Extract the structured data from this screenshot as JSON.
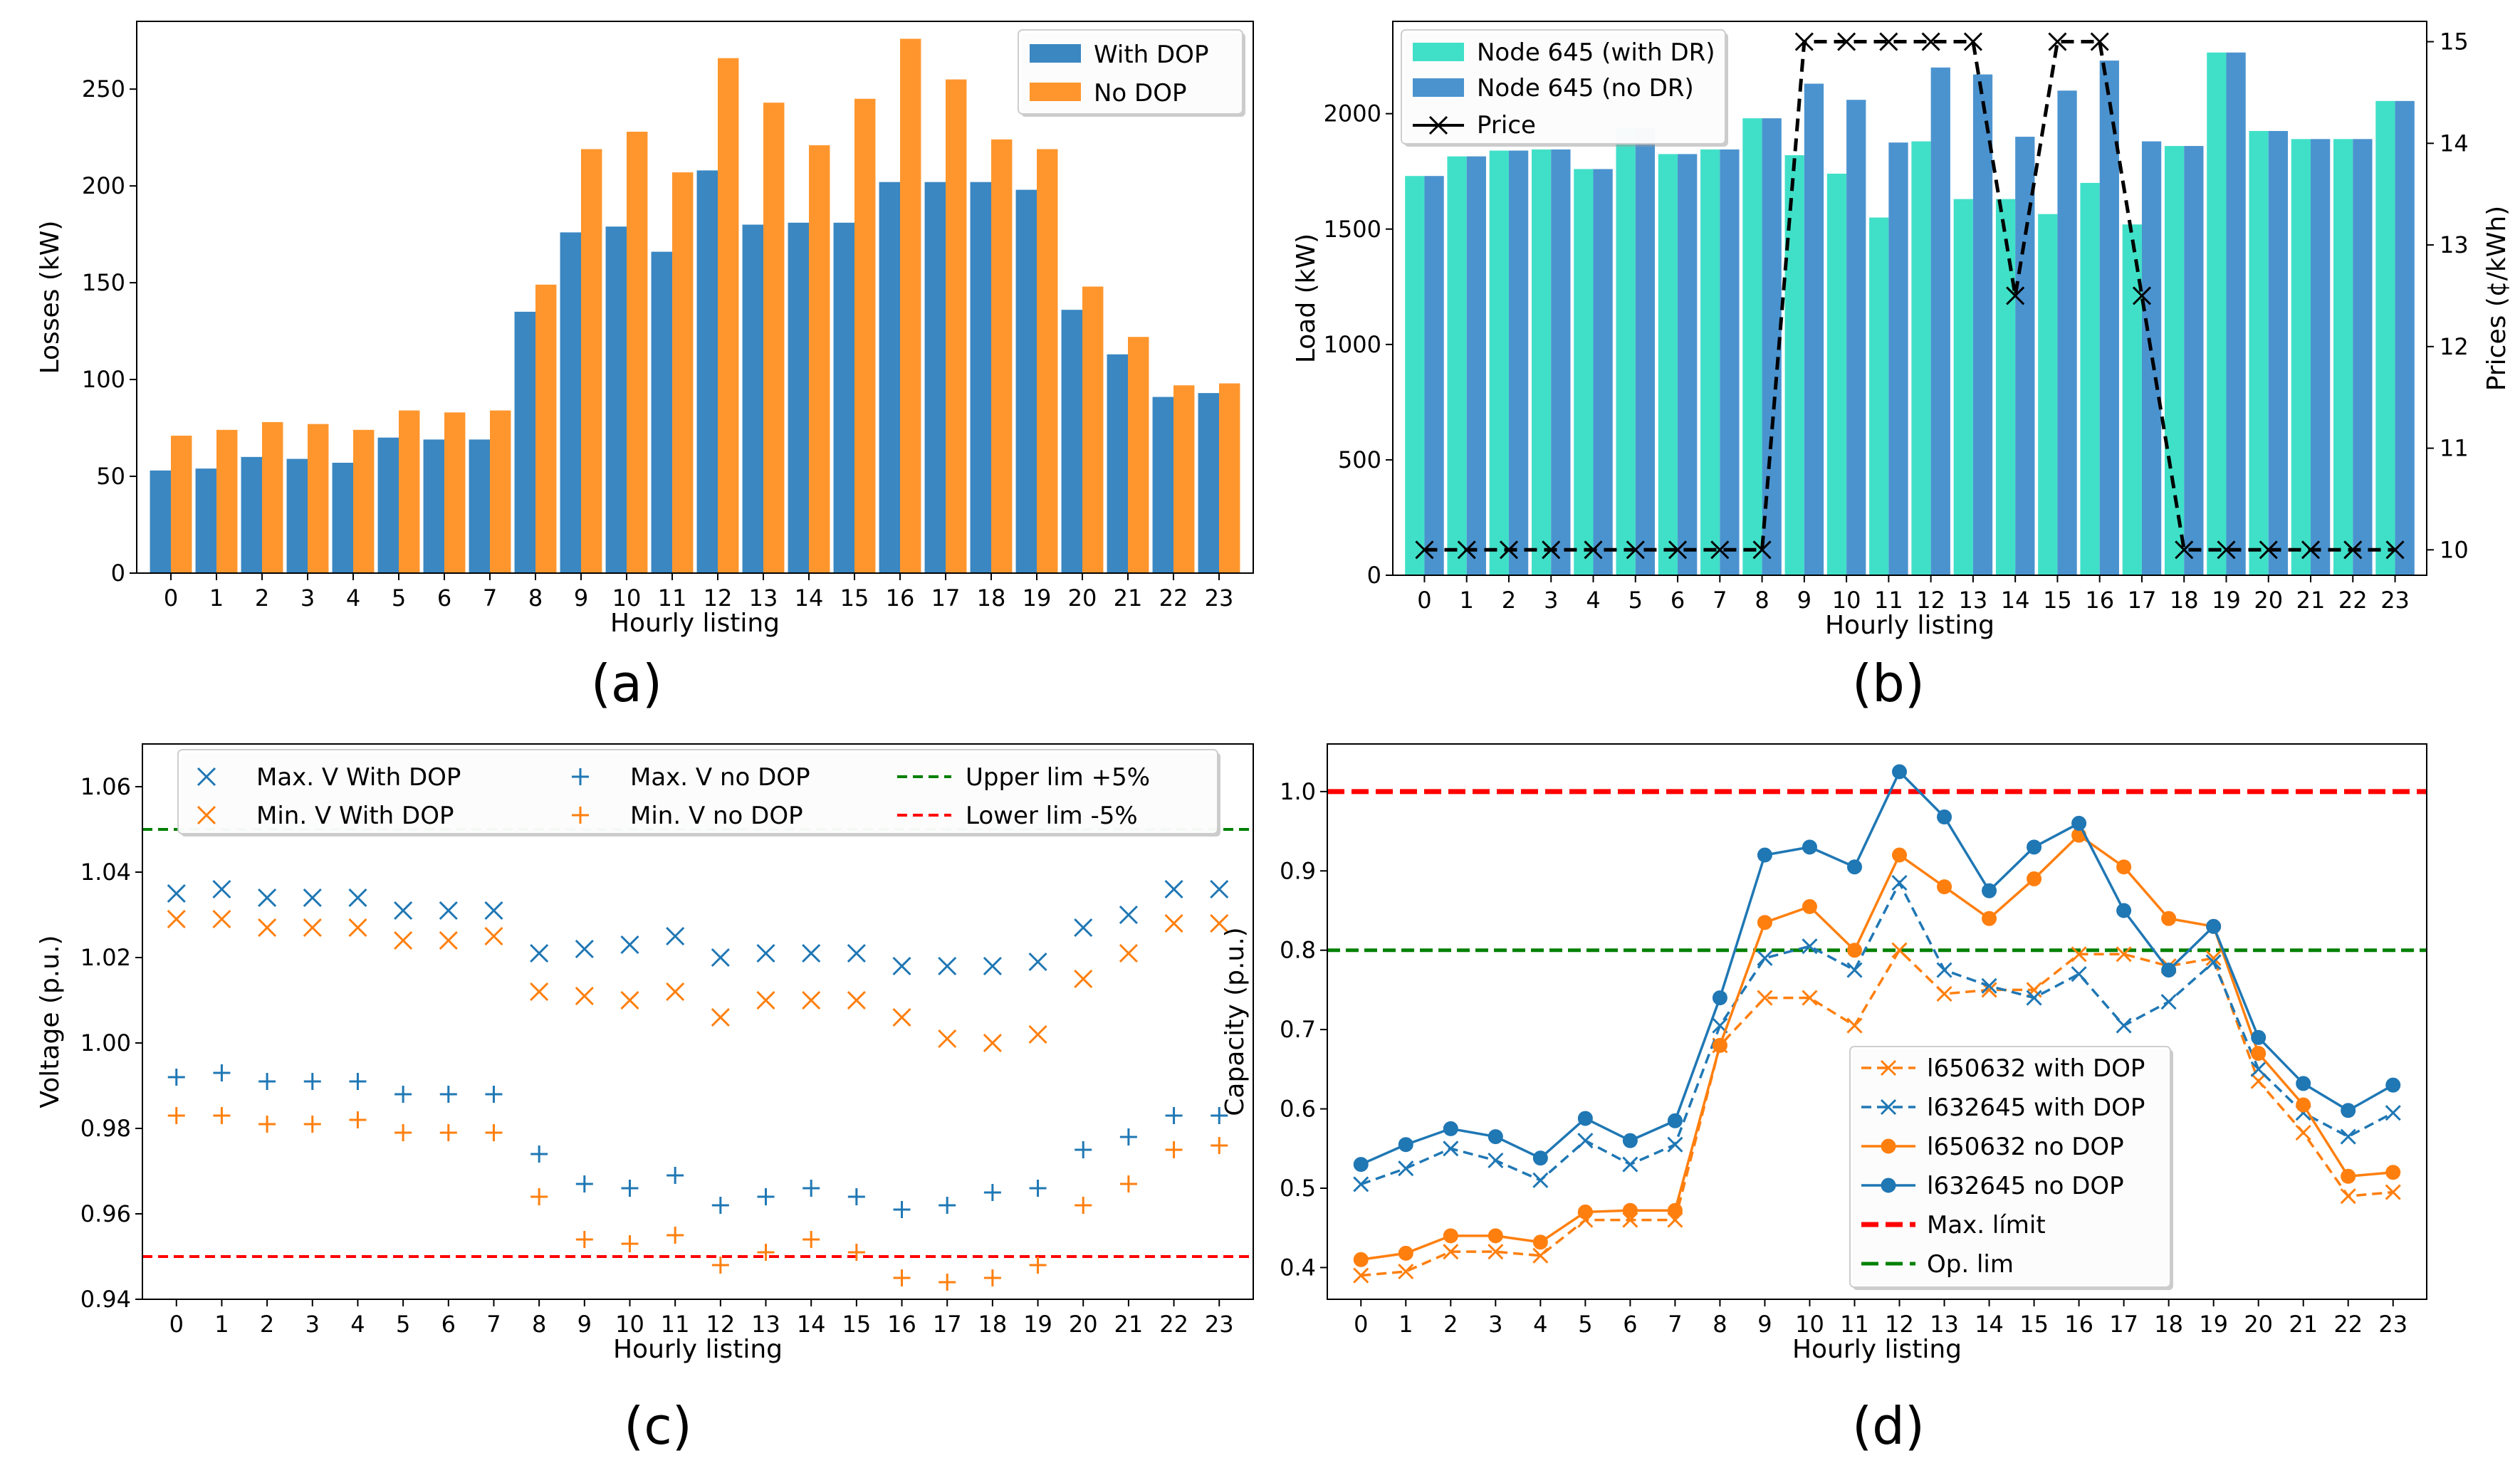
{
  "chart_data": [
    {
      "type": "bar",
      "panel_label": "(a)",
      "title": "",
      "xlabel": "Hourly listing",
      "ylabel": "Losses (kW)",
      "ylim": [
        0,
        285
      ],
      "yticks": [
        0,
        50,
        100,
        150,
        200,
        250
      ],
      "categories": [
        "0",
        "1",
        "2",
        "3",
        "4",
        "5",
        "6",
        "7",
        "8",
        "9",
        "10",
        "11",
        "12",
        "13",
        "14",
        "15",
        "16",
        "17",
        "18",
        "19",
        "20",
        "21",
        "22",
        "23"
      ],
      "legend_position": "top-right",
      "series": [
        {
          "name": "With DOP",
          "color": "#3a87c2",
          "values": [
            53,
            54,
            60,
            59,
            57,
            70,
            69,
            69,
            135,
            176,
            179,
            166,
            208,
            180,
            181,
            181,
            202,
            202,
            202,
            198,
            136,
            113,
            91,
            93
          ]
        },
        {
          "name": "No DOP",
          "color": "#ff962d",
          "values": [
            71,
            74,
            78,
            77,
            74,
            84,
            83,
            84,
            149,
            219,
            228,
            207,
            266,
            243,
            221,
            245,
            276,
            255,
            224,
            219,
            148,
            122,
            97,
            98
          ]
        }
      ]
    },
    {
      "type": "bar",
      "panel_label": "(b)",
      "title": "",
      "xlabel": "Hourly listing",
      "ylabel": "Load (kW)",
      "ylabel_right": "Prices (¢/kWh)",
      "ylim": [
        0,
        2400
      ],
      "yticks": [
        0,
        500,
        1000,
        1500,
        2000
      ],
      "ylim_right": [
        9.75,
        15.2
      ],
      "yticks_right": [
        10,
        11,
        12,
        13,
        14,
        15
      ],
      "categories": [
        "0",
        "1",
        "2",
        "3",
        "4",
        "5",
        "6",
        "7",
        "8",
        "9",
        "10",
        "11",
        "12",
        "13",
        "14",
        "15",
        "16",
        "17",
        "18",
        "19",
        "20",
        "21",
        "22",
        "23"
      ],
      "legend_position": "top-left",
      "series": [
        {
          "name": "Node 645 (with DR)",
          "color": "#40e0c8",
          "values": [
            1730,
            1815,
            1840,
            1845,
            1760,
            1940,
            1825,
            1845,
            1980,
            1820,
            1740,
            1550,
            1880,
            1630,
            1630,
            1565,
            1700,
            1520,
            1860,
            2265,
            1925,
            1890,
            1890,
            2055
          ]
        },
        {
          "name": "Node 645 (no DR)",
          "color": "#4b93cf",
          "values": [
            1730,
            1815,
            1840,
            1845,
            1760,
            1940,
            1825,
            1845,
            1980,
            2130,
            2060,
            1875,
            2200,
            2170,
            1900,
            2100,
            2230,
            1880,
            1860,
            2265,
            1925,
            1890,
            1890,
            2055
          ]
        },
        {
          "name": "Price",
          "color": "#000000",
          "axis": "right",
          "values": [
            10,
            10,
            10,
            10,
            10,
            10,
            10,
            10,
            10,
            15,
            15,
            15,
            15,
            15,
            12.5,
            15,
            15,
            12.5,
            10,
            10,
            10,
            10,
            10,
            10
          ]
        }
      ]
    },
    {
      "type": "scatter",
      "panel_label": "(c)",
      "title": "",
      "xlabel": "Hourly listing",
      "ylabel": "Voltage (p.u.)",
      "ylim": [
        0.94,
        1.07
      ],
      "yticks": [
        0.94,
        0.96,
        0.98,
        1.0,
        1.02,
        1.04,
        1.06
      ],
      "categories": [
        "0",
        "1",
        "2",
        "3",
        "4",
        "5",
        "6",
        "7",
        "8",
        "9",
        "10",
        "11",
        "12",
        "13",
        "14",
        "15",
        "16",
        "17",
        "18",
        "19",
        "20",
        "21",
        "22",
        "23"
      ],
      "legend_position": "top-center",
      "series": [
        {
          "name": "Max. V With DOP",
          "color": "#1f77b4",
          "marker": "x",
          "values": [
            1.035,
            1.036,
            1.034,
            1.034,
            1.034,
            1.031,
            1.031,
            1.031,
            1.021,
            1.022,
            1.023,
            1.025,
            1.02,
            1.021,
            1.021,
            1.021,
            1.018,
            1.018,
            1.018,
            1.019,
            1.027,
            1.03,
            1.036,
            1.036
          ]
        },
        {
          "name": "Min. V With DOP",
          "color": "#ff7f0e",
          "marker": "x",
          "values": [
            1.029,
            1.029,
            1.027,
            1.027,
            1.027,
            1.024,
            1.024,
            1.025,
            1.012,
            1.011,
            1.01,
            1.012,
            1.006,
            1.01,
            1.01,
            1.01,
            1.006,
            1.001,
            1.0,
            1.002,
            1.015,
            1.021,
            1.028,
            1.028
          ]
        },
        {
          "name": "Max. V no DOP",
          "color": "#1f77b4",
          "marker": "+",
          "values": [
            0.992,
            0.993,
            0.991,
            0.991,
            0.991,
            0.988,
            0.988,
            0.988,
            0.974,
            0.967,
            0.966,
            0.969,
            0.962,
            0.964,
            0.966,
            0.964,
            0.961,
            0.962,
            0.965,
            0.966,
            0.975,
            0.978,
            0.983,
            0.983
          ]
        },
        {
          "name": "Min. V no DOP",
          "color": "#ff7f0e",
          "marker": "+",
          "values": [
            0.983,
            0.983,
            0.981,
            0.981,
            0.982,
            0.979,
            0.979,
            0.979,
            0.964,
            0.954,
            0.953,
            0.955,
            0.948,
            0.951,
            0.954,
            0.951,
            0.945,
            0.944,
            0.945,
            0.948,
            0.962,
            0.967,
            0.975,
            0.976
          ]
        }
      ],
      "reference_lines": [
        {
          "name": "Upper lim +5%",
          "color": "#008000",
          "value": 1.05
        },
        {
          "name": "Lower lim -5%",
          "color": "#ff0000",
          "value": 0.95
        }
      ]
    },
    {
      "type": "line",
      "panel_label": "(d)",
      "title": "",
      "xlabel": "Hourly listing",
      "ylabel": "Capacity (p.u.)",
      "ylim": [
        0.36,
        1.06
      ],
      "yticks": [
        0.4,
        0.5,
        0.6,
        0.7,
        0.8,
        0.9,
        1.0
      ],
      "categories": [
        "0",
        "1",
        "2",
        "3",
        "4",
        "5",
        "6",
        "7",
        "8",
        "9",
        "10",
        "11",
        "12",
        "13",
        "14",
        "15",
        "16",
        "17",
        "18",
        "19",
        "20",
        "21",
        "22",
        "23"
      ],
      "legend_position": "lower-center",
      "series": [
        {
          "name": "l650632 with DOP",
          "color": "#ff7f0e",
          "marker": "x",
          "dash": true,
          "values": [
            0.39,
            0.395,
            0.42,
            0.42,
            0.415,
            0.46,
            0.46,
            0.46,
            0.68,
            0.74,
            0.74,
            0.705,
            0.8,
            0.745,
            0.75,
            0.75,
            0.795,
            0.795,
            0.78,
            0.79,
            0.635,
            0.57,
            0.49,
            0.495
          ]
        },
        {
          "name": "l632645 with DOP",
          "color": "#1f77b4",
          "marker": "x",
          "dash": true,
          "values": [
            0.505,
            0.525,
            0.55,
            0.535,
            0.51,
            0.56,
            0.53,
            0.555,
            0.705,
            0.79,
            0.805,
            0.775,
            0.885,
            0.775,
            0.755,
            0.74,
            0.77,
            0.705,
            0.735,
            0.785,
            0.65,
            0.595,
            0.565,
            0.595
          ]
        },
        {
          "name": "l650632 no DOP",
          "color": "#ff7f0e",
          "marker": "o",
          "dash": false,
          "values": [
            0.41,
            0.418,
            0.44,
            0.44,
            0.432,
            0.47,
            0.472,
            0.472,
            0.68,
            0.835,
            0.855,
            0.8,
            0.92,
            0.88,
            0.84,
            0.89,
            0.945,
            0.905,
            0.84,
            0.83,
            0.67,
            0.605,
            0.515,
            0.52
          ]
        },
        {
          "name": "l632645 no DOP",
          "color": "#1f77b4",
          "marker": "o",
          "dash": false,
          "values": [
            0.53,
            0.555,
            0.575,
            0.565,
            0.538,
            0.588,
            0.56,
            0.585,
            0.74,
            0.92,
            0.93,
            0.905,
            1.025,
            0.968,
            0.875,
            0.93,
            0.96,
            0.85,
            0.775,
            0.83,
            0.69,
            0.632,
            0.598,
            0.63
          ]
        }
      ],
      "reference_lines": [
        {
          "name": "Max. límit",
          "color": "#ff0000",
          "value": 1.0
        },
        {
          "name": "Op. lim",
          "color": "#008000",
          "value": 0.8
        }
      ]
    }
  ]
}
